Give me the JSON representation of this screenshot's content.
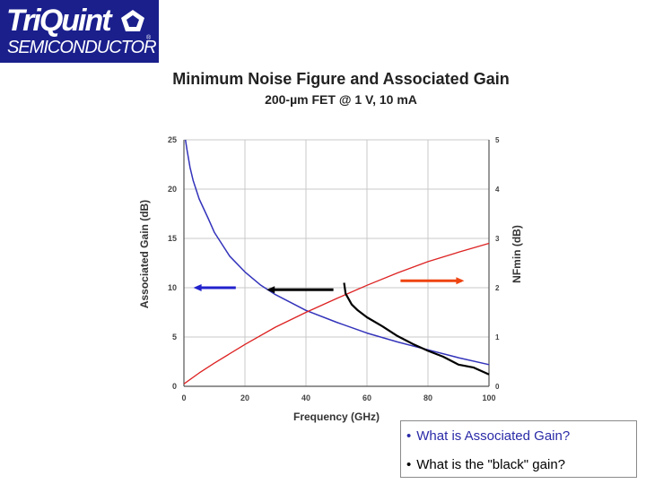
{
  "logo": {
    "brand": "TriQuint",
    "sub": "SEMICONDUCTOR",
    "reg": "®"
  },
  "header": {
    "title": "Minimum Noise Figure and Associated Gain",
    "subtitle": "200-µm FET @ 1 V, 10 mA"
  },
  "chart_data": {
    "type": "line",
    "xlabel": "Frequency (GHz)",
    "ylabel_left": "Associated Gain (dB)",
    "ylabel_right": "NFmin (dB)",
    "xlim": [
      0,
      100
    ],
    "ylim_left": [
      0,
      25
    ],
    "ylim_right": [
      0,
      5
    ],
    "x_ticks": [
      0,
      20,
      40,
      60,
      80,
      100
    ],
    "y_left_ticks": [
      0,
      5,
      10,
      15,
      20,
      25
    ],
    "y_right_ticks": [
      0,
      1,
      2,
      3,
      4,
      5
    ],
    "grid": true,
    "colors": {
      "gain": "#3333bb",
      "nf": "#dd2222",
      "black_gain": "#000000",
      "grid": "#c8c8c8"
    },
    "series": [
      {
        "axis": "left",
        "x": [
          0.5,
          1,
          2,
          3,
          5,
          8,
          10,
          15,
          20,
          25,
          30,
          40,
          50,
          60,
          70,
          80,
          90,
          100
        ],
        "values": [
          25,
          24,
          22.2,
          20.9,
          19,
          17,
          15.6,
          13.2,
          11.6,
          10.3,
          9.3,
          7.7,
          6.5,
          5.4,
          4.5,
          3.7,
          2.9,
          2.2
        ]
      },
      {
        "axis": "right",
        "x": [
          0,
          5,
          10,
          20,
          30,
          40,
          50,
          60,
          70,
          80,
          90,
          100
        ],
        "values": [
          0.05,
          0.27,
          0.47,
          0.85,
          1.2,
          1.5,
          1.78,
          2.05,
          2.3,
          2.53,
          2.72,
          2.9
        ]
      },
      {
        "axis": "left",
        "x": [
          52.5,
          53,
          55,
          57,
          60,
          65,
          70,
          75,
          80,
          85,
          90,
          95,
          100
        ],
        "values": [
          10.5,
          9.4,
          8.3,
          7.7,
          7.0,
          6.1,
          5.1,
          4.3,
          3.6,
          3.0,
          2.2,
          1.9,
          1.2
        ]
      }
    ],
    "arrows": [
      {
        "color": "#2222cc",
        "from": [
          17,
          10
        ],
        "to": [
          4,
          10
        ]
      },
      {
        "color": "#000000",
        "from": [
          49,
          9.8
        ],
        "to": [
          28,
          9.8
        ]
      },
      {
        "color": "#ee4411",
        "from": [
          71,
          10.7
        ],
        "to": [
          91,
          10.7
        ]
      }
    ]
  },
  "questions": [
    {
      "bullet": "•",
      "text": "What is Associated Gain?"
    },
    {
      "bullet": "•",
      "text": "What is the \"black\" gain?"
    }
  ]
}
